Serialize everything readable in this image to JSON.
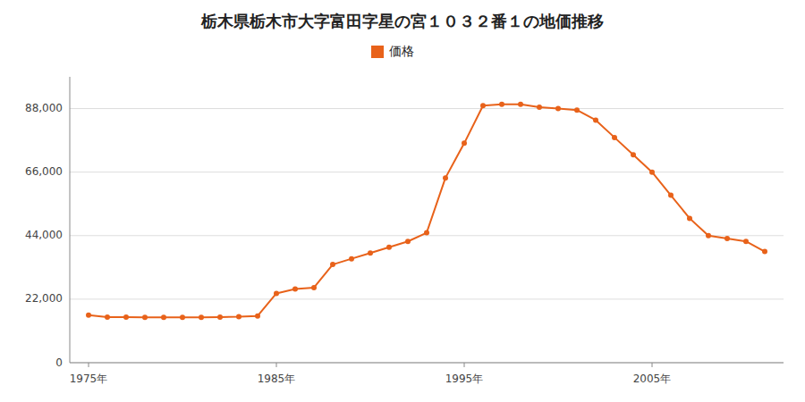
{
  "chart_data": {
    "type": "line",
    "title": "栃木県栃木市大字富田字星の宮１０３２番１の地価推移",
    "x": [
      1975,
      1976,
      1977,
      1978,
      1979,
      1980,
      1981,
      1982,
      1983,
      1984,
      1985,
      1986,
      1987,
      1988,
      1989,
      1990,
      1991,
      1992,
      1993,
      1994,
      1995,
      1996,
      1997,
      1998,
      1999,
      2000,
      2001,
      2002,
      2003,
      2004,
      2005,
      2006,
      2007,
      2008,
      2009,
      2010,
      2011
    ],
    "series": [
      {
        "name": "価格",
        "color": "#E8621A",
        "marker": "circle",
        "values": [
          16500,
          15800,
          15800,
          15700,
          15700,
          15700,
          15700,
          15800,
          15900,
          16200,
          24000,
          25500,
          26000,
          34000,
          36000,
          38000,
          40000,
          42000,
          45000,
          64000,
          76000,
          89000,
          89500,
          89500,
          88500,
          88000,
          87500,
          84000,
          78000,
          72000,
          66000,
          58000,
          50000,
          44000,
          43000,
          42000,
          38500
        ]
      }
    ],
    "xlim": [
      1974,
      2012
    ],
    "xticks": [
      {
        "value": 1975,
        "label": "1975年"
      },
      {
        "value": 1985,
        "label": "1985年"
      },
      {
        "value": 1995,
        "label": "1995年"
      },
      {
        "value": 2005,
        "label": "2005年"
      }
    ],
    "ylim": [
      0,
      99000
    ],
    "yticks": [
      0,
      {
        "value": 22000,
        "label": "22,000"
      },
      {
        "value": 44000,
        "label": "44,000"
      },
      {
        "value": 66000,
        "label": "66,000"
      },
      {
        "value": 88000,
        "label": "88,000"
      }
    ],
    "grid": true,
    "legend": "top"
  }
}
